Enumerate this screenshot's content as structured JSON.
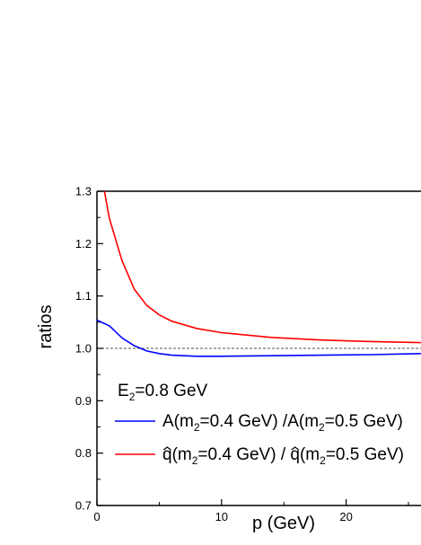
{
  "chart_data": {
    "type": "line",
    "xlabel": "p (GeV)",
    "ylabel": "ratios",
    "xlim": [
      0,
      26
    ],
    "ylim": [
      0.7,
      1.3
    ],
    "x_ticks": [
      "0",
      "10",
      "20"
    ],
    "y_ticks": [
      "0.7",
      "0.8",
      "0.9",
      "1.0",
      "1.1",
      "1.2",
      "1.3"
    ],
    "reference_line": 1.0,
    "annotation": "E₂=0.8 GeV",
    "legend_position": "bottom-left",
    "series": [
      {
        "name": "A(m₂=0.4 GeV) /A(m₂=0.5 GeV)",
        "color": "#0000ff",
        "x": [
          0,
          1,
          2,
          3,
          4,
          5,
          6,
          8,
          10,
          14,
          18,
          22,
          26
        ],
        "values": [
          1.054,
          1.043,
          1.02,
          1.005,
          0.995,
          0.99,
          0.987,
          0.985,
          0.985,
          0.986,
          0.987,
          0.988,
          0.99
        ]
      },
      {
        "name": "q̂(m₂=0.4 GeV) / q̂(m₂=0.5 GeV)",
        "color": "#ff0000",
        "x": [
          0.6,
          1,
          2,
          3,
          4,
          5,
          6,
          8,
          10,
          14,
          18,
          22,
          26
        ],
        "values": [
          1.3,
          1.248,
          1.168,
          1.113,
          1.082,
          1.064,
          1.052,
          1.038,
          1.03,
          1.021,
          1.016,
          1.013,
          1.011
        ]
      }
    ]
  },
  "legend": {
    "annotation_main": "E",
    "annotation_sub": "2",
    "annotation_rest": "=0.8 GeV",
    "blue_parts": [
      "A(m",
      "2",
      "=0.4 GeV) /A(m",
      "2",
      "=0.5 GeV)"
    ],
    "red_parts": [
      "q(m",
      "2",
      "=0.4 GeV) / ",
      "q(m",
      "2",
      "=0.5 GeV)"
    ]
  }
}
